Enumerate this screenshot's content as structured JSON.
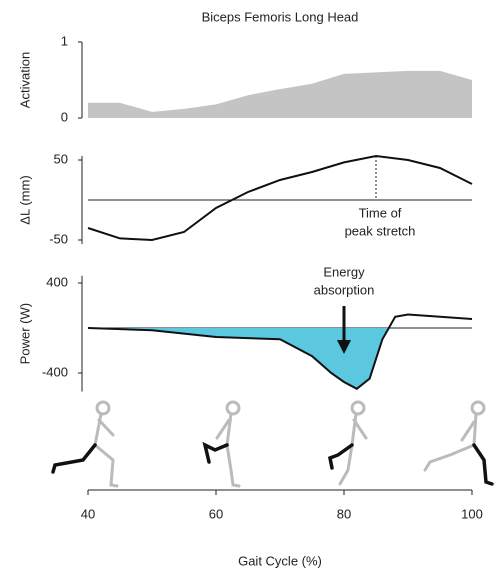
{
  "chart_data": [
    {
      "type": "area",
      "title": "Biceps Femoris Long Head",
      "ylabel": "Activation",
      "color": "#c4c4c4",
      "x": [
        40,
        45,
        50,
        55,
        60,
        65,
        70,
        75,
        80,
        85,
        90,
        95,
        100
      ],
      "values": [
        0.2,
        0.2,
        0.08,
        0.12,
        0.18,
        0.3,
        0.38,
        0.45,
        0.58,
        0.6,
        0.62,
        0.62,
        0.5
      ],
      "xlim": [
        40,
        100
      ],
      "ylim": [
        0,
        1
      ],
      "yticks": [
        0,
        1
      ]
    },
    {
      "type": "line",
      "ylabel": "ΔL (mm)",
      "color": "#111111",
      "x": [
        40,
        45,
        50,
        55,
        60,
        65,
        70,
        75,
        80,
        85,
        90,
        95,
        100
      ],
      "values": [
        -35,
        -48,
        -50,
        -40,
        -10,
        10,
        25,
        35,
        47,
        55,
        50,
        40,
        20
      ],
      "xlim": [
        40,
        100
      ],
      "ylim": [
        -60,
        60
      ],
      "yticks": [
        -50,
        50
      ],
      "annotation": {
        "text": [
          "Time of",
          "peak stretch"
        ],
        "x": 85
      }
    },
    {
      "type": "area",
      "ylabel": "Power (W)",
      "color": "#5bc8e0",
      "x": [
        40,
        50,
        60,
        70,
        75,
        78,
        80,
        82,
        84,
        86,
        88,
        90,
        95,
        100
      ],
      "values": [
        0,
        -20,
        -80,
        -100,
        -250,
        -400,
        -480,
        -540,
        -450,
        -100,
        100,
        120,
        100,
        80
      ],
      "xlim": [
        40,
        100
      ],
      "ylim": [
        -600,
        500
      ],
      "yticks": [
        -400,
        400
      ],
      "annotation": {
        "text": [
          "Energy",
          "absorption"
        ],
        "x": 80
      },
      "xlabel": "Gait Cycle (%)",
      "xticks": [
        40,
        60,
        80,
        100
      ]
    }
  ]
}
